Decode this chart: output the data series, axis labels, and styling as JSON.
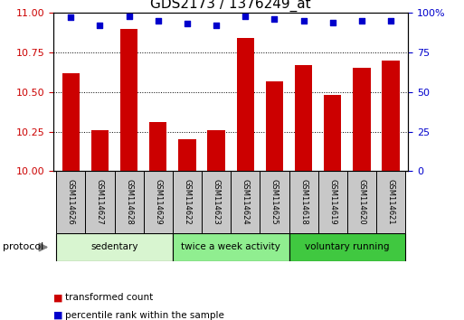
{
  "title": "GDS2173 / 1376249_at",
  "samples": [
    "GSM114626",
    "GSM114627",
    "GSM114628",
    "GSM114629",
    "GSM114622",
    "GSM114623",
    "GSM114624",
    "GSM114625",
    "GSM114618",
    "GSM114619",
    "GSM114620",
    "GSM114621"
  ],
  "bar_values": [
    10.62,
    10.26,
    10.9,
    10.31,
    10.2,
    10.26,
    10.84,
    10.57,
    10.67,
    10.48,
    10.65,
    10.7
  ],
  "percentile_values": [
    97,
    92,
    98,
    95,
    93,
    92,
    98,
    96,
    95,
    94,
    95,
    95
  ],
  "bar_color": "#cc0000",
  "dot_color": "#0000cc",
  "ylim_left": [
    10,
    11
  ],
  "ylim_right": [
    0,
    100
  ],
  "yticks_left": [
    10,
    10.25,
    10.5,
    10.75,
    11
  ],
  "yticks_right": [
    0,
    25,
    50,
    75,
    100
  ],
  "groups": [
    {
      "label": "sedentary",
      "start": 0,
      "end": 4,
      "color": "#d8f5d0"
    },
    {
      "label": "twice a week activity",
      "start": 4,
      "end": 8,
      "color": "#90ee90"
    },
    {
      "label": "voluntary running",
      "start": 8,
      "end": 12,
      "color": "#40c840"
    }
  ],
  "protocol_label": "protocol",
  "legend_bar_label": "transformed count",
  "legend_dot_label": "percentile rank within the sample",
  "background_color": "#ffffff",
  "plot_bg_color": "#ffffff",
  "tick_label_color_left": "#cc0000",
  "tick_label_color_right": "#0000cc",
  "title_fontsize": 11,
  "tick_fontsize": 8,
  "sample_fontsize": 6,
  "label_fontsize": 8
}
